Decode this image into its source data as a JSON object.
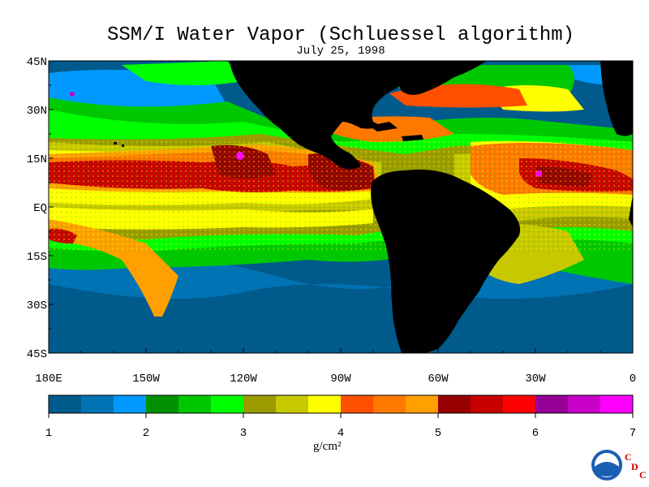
{
  "title": "SSM/I Water Vapor (Schluessel algorithm)",
  "subtitle": "July 25, 1998",
  "lat_labels": [
    "45N",
    "30N",
    "15N",
    "EQ",
    "15S",
    "30S",
    "45S"
  ],
  "lon_labels": [
    "180E",
    "150W",
    "120W",
    "90W",
    "60W",
    "30W",
    "0"
  ],
  "colorbar": {
    "labels": [
      "1",
      "2",
      "3",
      "4",
      "5",
      "6",
      "7"
    ],
    "units": "g/cm²",
    "colors": [
      "#005a8c",
      "#0073b4",
      "#0099ff",
      "#009100",
      "#00c800",
      "#00ff00",
      "#9b9b00",
      "#c8c800",
      "#ffff00",
      "#ff5000",
      "#ff7800",
      "#ffa000",
      "#960000",
      "#c80000",
      "#ff0000",
      "#960096",
      "#c800c8",
      "#ff00ff"
    ]
  },
  "legend_icons": {
    "logo": "noaa-logo",
    "mark": "cdc-mark"
  },
  "logo": {
    "text": "NOAA",
    "c1": "C",
    "c2": "D",
    "c3": "C"
  }
}
